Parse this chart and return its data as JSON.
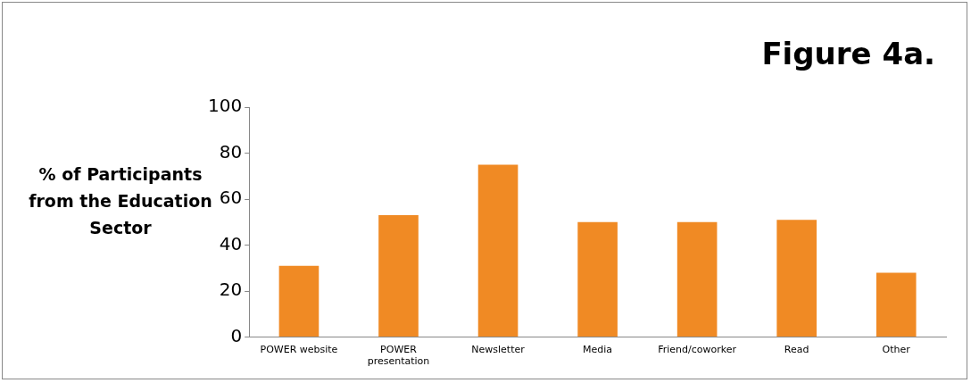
{
  "chart_data": {
    "type": "bar",
    "title": "Figure 4a.",
    "ylabel": "% of Participants from the Education Sector",
    "categories": [
      "POWER website",
      "POWER presentation",
      "Newsletter",
      "Media",
      "Friend/coworker",
      "Read",
      "Other"
    ],
    "values": [
      31,
      53,
      75,
      50,
      50,
      51,
      28
    ],
    "color": "#f08a24",
    "ylim": [
      0,
      100
    ],
    "yticks": [
      0,
      20,
      40,
      60,
      80,
      100
    ],
    "grid": false,
    "legend": false
  }
}
